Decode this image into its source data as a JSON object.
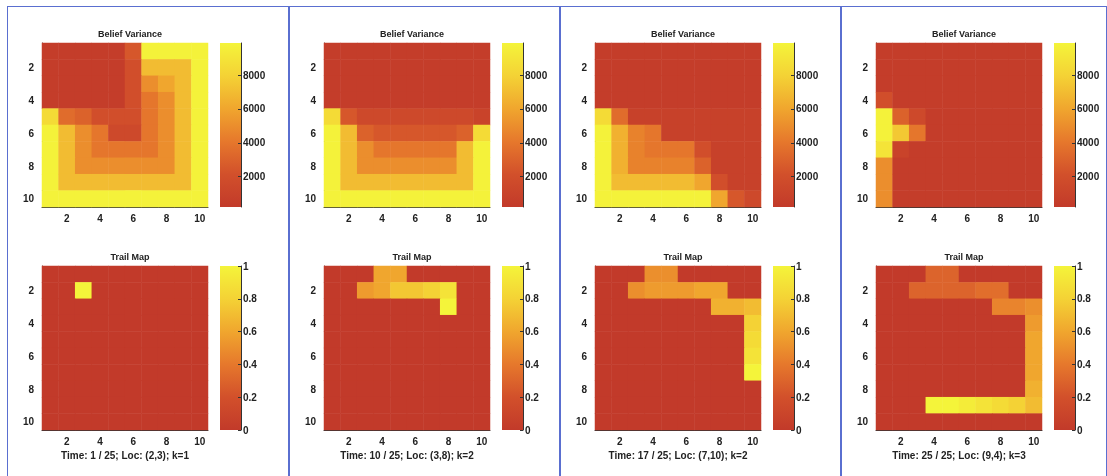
{
  "chart_data": [
    {
      "type": "heatmap",
      "title": "Belief Variance",
      "categories": [
        null,
        "2",
        null,
        "4",
        null,
        "6",
        null,
        "8",
        null,
        "10"
      ],
      "y_categories": [
        null,
        "2",
        null,
        "4",
        null,
        "6",
        null,
        "8",
        null,
        "10"
      ],
      "clim": [
        200,
        9900
      ],
      "cticks": [
        2000,
        4000,
        6000,
        8000
      ],
      "cells": [
        [
          500,
          500,
          500,
          500,
          500,
          2500,
          9800,
          9800,
          9800,
          9800
        ],
        [
          500,
          500,
          500,
          500,
          500,
          2000,
          7000,
          7000,
          7000,
          9800
        ],
        [
          500,
          500,
          500,
          500,
          500,
          2000,
          5000,
          6000,
          7000,
          9800
        ],
        [
          500,
          500,
          500,
          500,
          500,
          2000,
          4000,
          5000,
          7000,
          9800
        ],
        [
          8500,
          3500,
          3000,
          2000,
          2000,
          2000,
          4000,
          5000,
          7000,
          9800
        ],
        [
          9800,
          7000,
          5000,
          4000,
          1500,
          1500,
          4000,
          5000,
          7000,
          9800
        ],
        [
          9800,
          7000,
          5000,
          4000,
          4000,
          4000,
          4000,
          5000,
          7000,
          9800
        ],
        [
          9800,
          7000,
          5000,
          5000,
          5000,
          5000,
          5000,
          5000,
          7000,
          9800
        ],
        [
          9800,
          7000,
          7000,
          7000,
          7000,
          7000,
          7000,
          7000,
          7000,
          9800
        ],
        [
          9800,
          9800,
          9800,
          9800,
          9800,
          9800,
          9800,
          9800,
          9800,
          9800
        ]
      ]
    },
    {
      "type": "heatmap",
      "title": "Belief Variance",
      "categories": [
        null,
        "2",
        null,
        "4",
        null,
        "6",
        null,
        "8",
        null,
        "10"
      ],
      "y_categories": [
        null,
        "2",
        null,
        "4",
        null,
        "6",
        null,
        "8",
        null,
        "10"
      ],
      "clim": [
        200,
        9900
      ],
      "cticks": [
        2000,
        4000,
        6000,
        8000
      ],
      "cells": [
        [
          500,
          500,
          500,
          500,
          500,
          500,
          500,
          500,
          500,
          500
        ],
        [
          500,
          500,
          500,
          500,
          500,
          500,
          500,
          500,
          500,
          500
        ],
        [
          500,
          500,
          500,
          500,
          500,
          500,
          500,
          500,
          500,
          500
        ],
        [
          500,
          500,
          500,
          500,
          500,
          500,
          500,
          500,
          500,
          500
        ],
        [
          8500,
          2500,
          1500,
          1500,
          1500,
          1500,
          1500,
          1500,
          1500,
          1000
        ],
        [
          9800,
          7000,
          3000,
          2500,
          2500,
          2500,
          2500,
          2500,
          3000,
          8500
        ],
        [
          9800,
          7000,
          5000,
          4000,
          4000,
          4000,
          4000,
          4000,
          7000,
          9800
        ],
        [
          9800,
          7000,
          5000,
          5000,
          5000,
          5000,
          5000,
          5000,
          7000,
          9800
        ],
        [
          9800,
          7000,
          7000,
          7000,
          7000,
          7000,
          7000,
          7000,
          7000,
          9800
        ],
        [
          9800,
          9800,
          9800,
          9800,
          9800,
          9800,
          9800,
          9800,
          9800,
          9800
        ]
      ]
    },
    {
      "type": "heatmap",
      "title": "Belief Variance",
      "categories": [
        null,
        "2",
        null,
        "4",
        null,
        "6",
        null,
        "8",
        null,
        "10"
      ],
      "y_categories": [
        null,
        "2",
        null,
        "4",
        null,
        "6",
        null,
        "8",
        null,
        "10"
      ],
      "clim": [
        200,
        9900
      ],
      "cticks": [
        2000,
        4000,
        6000,
        8000
      ],
      "cells": [
        [
          500,
          500,
          500,
          500,
          500,
          500,
          500,
          500,
          500,
          500
        ],
        [
          500,
          500,
          500,
          500,
          500,
          500,
          500,
          500,
          500,
          500
        ],
        [
          500,
          500,
          500,
          500,
          500,
          500,
          500,
          500,
          500,
          500
        ],
        [
          500,
          500,
          500,
          500,
          500,
          500,
          500,
          500,
          500,
          500
        ],
        [
          8500,
          3500,
          800,
          800,
          800,
          800,
          800,
          800,
          800,
          800
        ],
        [
          9800,
          6500,
          4500,
          4000,
          800,
          800,
          800,
          800,
          800,
          800
        ],
        [
          9800,
          6500,
          4500,
          4000,
          4000,
          4000,
          2000,
          800,
          800,
          800
        ],
        [
          9800,
          6500,
          4500,
          4500,
          4500,
          4500,
          3000,
          800,
          800,
          800
        ],
        [
          9800,
          7000,
          7000,
          7000,
          7000,
          7000,
          6000,
          2000,
          800,
          800
        ],
        [
          9800,
          9800,
          9800,
          9800,
          9800,
          9800,
          9800,
          6000,
          2500,
          1500
        ]
      ]
    },
    {
      "type": "heatmap",
      "title": "Belief Variance",
      "categories": [
        null,
        "2",
        null,
        "4",
        null,
        "6",
        null,
        "8",
        null,
        "10"
      ],
      "y_categories": [
        null,
        "2",
        null,
        "4",
        null,
        "6",
        null,
        "8",
        null,
        "10"
      ],
      "clim": [
        200,
        9900
      ],
      "cticks": [
        2000,
        4000,
        6000,
        8000
      ],
      "cells": [
        [
          500,
          500,
          500,
          500,
          500,
          500,
          500,
          500,
          500,
          500
        ],
        [
          500,
          500,
          500,
          500,
          500,
          500,
          500,
          500,
          500,
          500
        ],
        [
          500,
          500,
          500,
          500,
          500,
          500,
          500,
          500,
          500,
          500
        ],
        [
          2000,
          500,
          500,
          500,
          500,
          500,
          500,
          500,
          500,
          500
        ],
        [
          9800,
          3000,
          1500,
          500,
          500,
          500,
          500,
          500,
          500,
          500
        ],
        [
          9800,
          7500,
          4000,
          500,
          500,
          500,
          500,
          500,
          500,
          500
        ],
        [
          9000,
          1000,
          500,
          500,
          500,
          500,
          500,
          500,
          500,
          500
        ],
        [
          5000,
          500,
          500,
          500,
          500,
          500,
          500,
          500,
          500,
          500
        ],
        [
          5000,
          500,
          500,
          500,
          500,
          500,
          500,
          500,
          500,
          500
        ],
        [
          5000,
          500,
          500,
          500,
          500,
          500,
          500,
          500,
          500,
          500
        ]
      ]
    },
    {
      "type": "heatmap",
      "title": "Trail Map",
      "xlabel": "Time: 1 / 25; Loc: (2,3); k=1",
      "categories": [
        null,
        "2",
        null,
        "4",
        null,
        "6",
        null,
        "8",
        null,
        "10"
      ],
      "y_categories": [
        null,
        "2",
        null,
        "4",
        null,
        "6",
        null,
        "8",
        null,
        "10"
      ],
      "clim": [
        0,
        1
      ],
      "cticks": [
        0,
        0.2,
        0.4,
        0.6,
        0.8,
        1
      ],
      "cells": [
        [
          0,
          0,
          0,
          0,
          0,
          0,
          0,
          0,
          0,
          0
        ],
        [
          0,
          0,
          1,
          0,
          0,
          0,
          0,
          0,
          0,
          0
        ],
        [
          0,
          0,
          0,
          0,
          0,
          0,
          0,
          0,
          0,
          0
        ],
        [
          0,
          0,
          0,
          0,
          0,
          0,
          0,
          0,
          0,
          0
        ],
        [
          0,
          0,
          0,
          0,
          0,
          0,
          0,
          0,
          0,
          0
        ],
        [
          0,
          0,
          0,
          0,
          0,
          0,
          0,
          0,
          0,
          0
        ],
        [
          0,
          0,
          0,
          0,
          0,
          0,
          0,
          0,
          0,
          0
        ],
        [
          0,
          0,
          0,
          0,
          0,
          0,
          0,
          0,
          0,
          0
        ],
        [
          0,
          0,
          0,
          0,
          0,
          0,
          0,
          0,
          0,
          0
        ],
        [
          0,
          0,
          0,
          0,
          0,
          0,
          0,
          0,
          0,
          0
        ]
      ]
    },
    {
      "type": "heatmap",
      "title": "Trail Map",
      "xlabel": "Time: 10 / 25; Loc: (3,8); k=2",
      "categories": [
        null,
        "2",
        null,
        "4",
        null,
        "6",
        null,
        "8",
        null,
        "10"
      ],
      "y_categories": [
        null,
        "2",
        null,
        "4",
        null,
        "6",
        null,
        "8",
        null,
        "10"
      ],
      "clim": [
        0,
        1
      ],
      "cticks": [
        0,
        0.2,
        0.4,
        0.6,
        0.8,
        1
      ],
      "cells": [
        [
          0,
          0,
          0,
          0.6,
          0.6,
          0,
          0,
          0,
          0,
          0
        ],
        [
          0,
          0,
          0.55,
          0.6,
          0.75,
          0.75,
          0.8,
          0.9,
          0,
          0
        ],
        [
          0,
          0,
          0,
          0,
          0,
          0,
          0,
          1,
          0,
          0
        ],
        [
          0,
          0,
          0,
          0,
          0,
          0,
          0,
          0,
          0,
          0
        ],
        [
          0,
          0,
          0,
          0,
          0,
          0,
          0,
          0,
          0,
          0
        ],
        [
          0,
          0,
          0,
          0,
          0,
          0,
          0,
          0,
          0,
          0
        ],
        [
          0,
          0,
          0,
          0,
          0,
          0,
          0,
          0,
          0,
          0
        ],
        [
          0,
          0,
          0,
          0,
          0,
          0,
          0,
          0,
          0,
          0
        ],
        [
          0,
          0,
          0,
          0,
          0,
          0,
          0,
          0,
          0,
          0
        ],
        [
          0,
          0,
          0,
          0,
          0,
          0,
          0,
          0,
          0,
          0
        ]
      ]
    },
    {
      "type": "heatmap",
      "title": "Trail Map",
      "xlabel": "Time: 17 / 25; Loc: (7,10); k=2",
      "categories": [
        null,
        "2",
        null,
        "4",
        null,
        "6",
        null,
        "8",
        null,
        "10"
      ],
      "y_categories": [
        null,
        "2",
        null,
        "4",
        null,
        "6",
        null,
        "8",
        null,
        "10"
      ],
      "clim": [
        0,
        1
      ],
      "cticks": [
        0,
        0.2,
        0.4,
        0.6,
        0.8,
        1
      ],
      "cells": [
        [
          0,
          0,
          0,
          0.5,
          0.5,
          0,
          0,
          0,
          0,
          0
        ],
        [
          0,
          0,
          0.5,
          0.55,
          0.55,
          0.55,
          0.6,
          0.6,
          0,
          0
        ],
        [
          0,
          0,
          0,
          0,
          0,
          0,
          0,
          0.65,
          0.65,
          0.7
        ],
        [
          0,
          0,
          0,
          0,
          0,
          0,
          0,
          0,
          0,
          0.8
        ],
        [
          0,
          0,
          0,
          0,
          0,
          0,
          0,
          0,
          0,
          0.85
        ],
        [
          0,
          0,
          0,
          0,
          0,
          0,
          0,
          0,
          0,
          0.9
        ],
        [
          0,
          0,
          0,
          0,
          0,
          0,
          0,
          0,
          0,
          1
        ],
        [
          0,
          0,
          0,
          0,
          0,
          0,
          0,
          0,
          0,
          0
        ],
        [
          0,
          0,
          0,
          0,
          0,
          0,
          0,
          0,
          0,
          0
        ],
        [
          0,
          0,
          0,
          0,
          0,
          0,
          0,
          0,
          0,
          0
        ]
      ]
    },
    {
      "type": "heatmap",
      "title": "Trail Map",
      "xlabel": "Time: 25 / 25; Loc: (9,4); k=3",
      "categories": [
        null,
        "2",
        null,
        "4",
        null,
        "6",
        null,
        "8",
        null,
        "10"
      ],
      "y_categories": [
        null,
        "2",
        null,
        "4",
        null,
        "6",
        null,
        "8",
        null,
        "10"
      ],
      "clim": [
        0,
        1
      ],
      "cticks": [
        0,
        0.2,
        0.4,
        0.6,
        0.8,
        1
      ],
      "cells": [
        [
          0,
          0,
          0,
          0.3,
          0.3,
          0,
          0,
          0,
          0,
          0
        ],
        [
          0,
          0,
          0.3,
          0.3,
          0.3,
          0.3,
          0.35,
          0.35,
          0,
          0
        ],
        [
          0,
          0,
          0,
          0,
          0,
          0,
          0,
          0.45,
          0.45,
          0.5
        ],
        [
          0,
          0,
          0,
          0,
          0,
          0,
          0,
          0,
          0,
          0.55
        ],
        [
          0,
          0,
          0,
          0,
          0,
          0,
          0,
          0,
          0,
          0.6
        ],
        [
          0,
          0,
          0,
          0,
          0,
          0,
          0,
          0,
          0,
          0.6
        ],
        [
          0,
          0,
          0,
          0,
          0,
          0,
          0,
          0,
          0,
          0.6
        ],
        [
          0,
          0,
          0,
          0,
          0,
          0,
          0,
          0,
          0,
          0.65
        ],
        [
          0,
          0,
          0,
          1,
          1,
          0.95,
          0.9,
          0.85,
          0.8,
          0.7
        ],
        [
          0,
          0,
          0,
          0,
          0,
          0,
          0,
          0,
          0,
          0
        ]
      ]
    }
  ]
}
